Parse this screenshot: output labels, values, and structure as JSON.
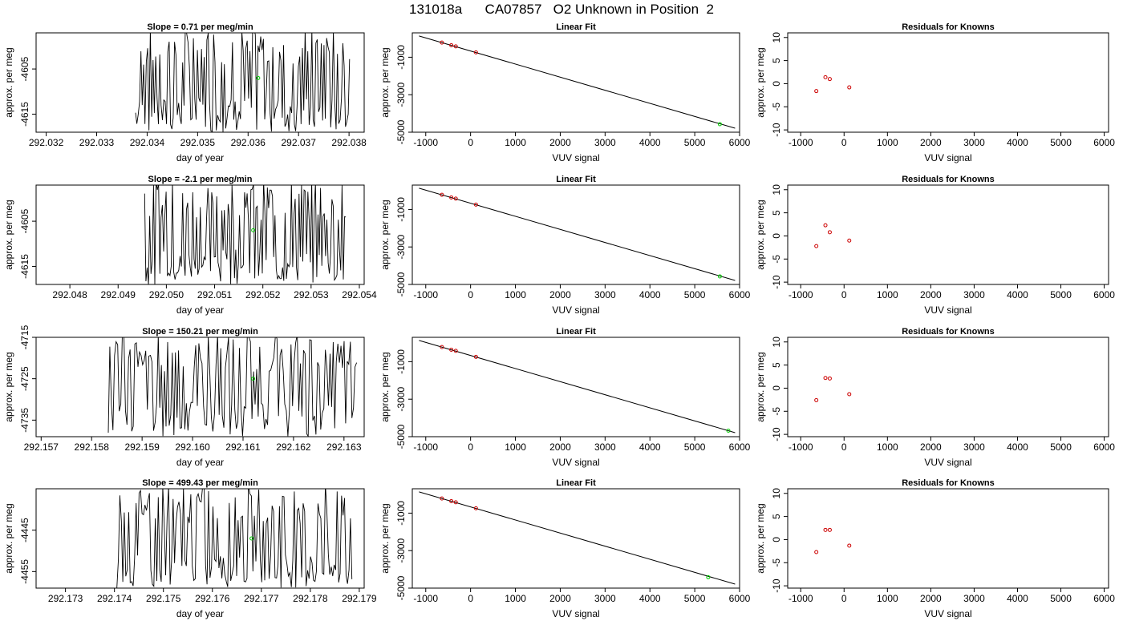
{
  "title": "131018a      CA07857   O2 Unknown in Position  2",
  "colors": {
    "known": "#cc0000",
    "unknown": "#00cc00",
    "line": "#000000"
  },
  "chart_data": [
    {
      "type": "line",
      "panel": "time-series",
      "title": "Slope =  0.71  per meg/min",
      "xlabel": "day of year",
      "ylabel": "approx. per meg",
      "xlim": [
        292.0318,
        292.0383
      ],
      "ylim": [
        -4619,
        -4597
      ],
      "xticks": [
        292.032,
        292.033,
        292.034,
        292.035,
        292.036,
        292.037,
        292.038
      ],
      "xtick_labels": [
        "292.032",
        "292.033",
        "292.034",
        "292.035",
        "292.036",
        "292.037",
        "292.038"
      ],
      "yticks": [
        -4605,
        -4615
      ],
      "ytick_labels": [
        "-4605",
        "-4615"
      ],
      "trace_x": [
        292.03377,
        292.03801
      ],
      "trace_y_range": [
        -4619,
        -4597
      ],
      "point": {
        "x": 292.0362,
        "y": -4607
      }
    },
    {
      "type": "scatter",
      "panel": "linear-fit",
      "title": "Linear Fit",
      "xlabel": "VUV signal",
      "ylabel": "approx. per meg",
      "xlim": [
        -1300,
        6000
      ],
      "ylim": [
        -5000,
        300
      ],
      "xticks": [
        -1000,
        0,
        1000,
        2000,
        3000,
        4000,
        5000,
        6000
      ],
      "xtick_labels": [
        "-1000",
        "0",
        "1000",
        "2000",
        "3000",
        "4000",
        "5000",
        "6000"
      ],
      "yticks": [
        -1000,
        -3000,
        -5000
      ],
      "ytick_labels": [
        "-1000",
        "-3000",
        "-5000"
      ],
      "fit_line": {
        "x": [
          -1150,
          5900
        ],
        "y": [
          136,
          -4787
        ]
      },
      "knowns": [
        {
          "x": -640,
          "y": -220
        },
        {
          "x": -430,
          "y": -360
        },
        {
          "x": -330,
          "y": -420
        },
        {
          "x": 120,
          "y": -740
        }
      ],
      "unknown": {
        "x": 5560,
        "y": -4570
      }
    },
    {
      "type": "scatter",
      "panel": "residuals",
      "title": "Residuals for Knowns",
      "xlabel": "VUV signal",
      "ylabel": "approx. per meg",
      "xlim": [
        -1300,
        6100
      ],
      "ylim": [
        -10.5,
        11
      ],
      "xticks": [
        -1000,
        0,
        1000,
        2000,
        3000,
        4000,
        5000,
        6000
      ],
      "xtick_labels": [
        "-1000",
        "0",
        "1000",
        "2000",
        "3000",
        "4000",
        "5000",
        "6000"
      ],
      "yticks": [
        10,
        5,
        0,
        -5,
        -10
      ],
      "ytick_labels": [
        "10",
        "5",
        "0",
        "-5",
        "-10"
      ],
      "knowns": [
        {
          "x": -640,
          "y": -1.6
        },
        {
          "x": -430,
          "y": 1.4
        },
        {
          "x": -330,
          "y": 1.0
        },
        {
          "x": 120,
          "y": -0.8
        }
      ]
    },
    {
      "type": "line",
      "panel": "time-series",
      "title": "Slope =  -2.1  per meg/min",
      "xlabel": "day of year",
      "ylabel": "approx. per meg",
      "xlim": [
        292.0473,
        292.0541
      ],
      "ylim": [
        -4619,
        -4597
      ],
      "xticks": [
        292.048,
        292.049,
        292.05,
        292.051,
        292.052,
        292.053,
        292.054
      ],
      "xtick_labels": [
        "292.048",
        "292.049",
        "292.050",
        "292.051",
        "292.052",
        "292.053",
        "292.054"
      ],
      "yticks": [
        -4605,
        -4615
      ],
      "ytick_labels": [
        "-4605",
        "-4615"
      ],
      "trace_x": [
        292.04955,
        292.05372
      ],
      "trace_y_range": [
        -4619,
        -4597
      ],
      "point": {
        "x": 292.0518,
        "y": -4607
      }
    },
    {
      "type": "scatter",
      "panel": "linear-fit",
      "title": "Linear Fit",
      "xlabel": "VUV signal",
      "ylabel": "approx. per meg",
      "xlim": [
        -1300,
        6000
      ],
      "ylim": [
        -5000,
        300
      ],
      "xticks": [
        -1000,
        0,
        1000,
        2000,
        3000,
        4000,
        5000,
        6000
      ],
      "xtick_labels": [
        "-1000",
        "0",
        "1000",
        "2000",
        "3000",
        "4000",
        "5000",
        "6000"
      ],
      "yticks": [
        -1000,
        -3000,
        -5000
      ],
      "ytick_labels": [
        "-1000",
        "-3000",
        "-5000"
      ],
      "fit_line": {
        "x": [
          -1150,
          5900
        ],
        "y": [
          136,
          -4787
        ]
      },
      "knowns": [
        {
          "x": -640,
          "y": -220
        },
        {
          "x": -430,
          "y": -360
        },
        {
          "x": -330,
          "y": -420
        },
        {
          "x": 120,
          "y": -740
        }
      ],
      "unknown": {
        "x": 5560,
        "y": -4570
      }
    },
    {
      "type": "scatter",
      "panel": "residuals",
      "title": "Residuals for Knowns",
      "xlabel": "VUV signal",
      "ylabel": "approx. per meg",
      "xlim": [
        -1300,
        6100
      ],
      "ylim": [
        -10.5,
        11
      ],
      "xticks": [
        -1000,
        0,
        1000,
        2000,
        3000,
        4000,
        5000,
        6000
      ],
      "xtick_labels": [
        "-1000",
        "0",
        "1000",
        "2000",
        "3000",
        "4000",
        "5000",
        "6000"
      ],
      "yticks": [
        10,
        5,
        0,
        -5,
        -10
      ],
      "ytick_labels": [
        "10",
        "5",
        "0",
        "-5",
        "-10"
      ],
      "knowns": [
        {
          "x": -640,
          "y": -2.2
        },
        {
          "x": -430,
          "y": 2.3
        },
        {
          "x": -330,
          "y": 0.8
        },
        {
          "x": 120,
          "y": -1.0
        }
      ]
    },
    {
      "type": "line",
      "panel": "time-series",
      "title": "Slope =  150.21  per meg/min",
      "xlabel": "day of year",
      "ylabel": "approx. per meg",
      "xlim": [
        292.1569,
        292.1634
      ],
      "ylim": [
        -4739,
        -4715
      ],
      "xticks": [
        292.157,
        292.158,
        292.159,
        292.16,
        292.161,
        292.162,
        292.163
      ],
      "xtick_labels": [
        "292.157",
        "292.158",
        "292.159",
        "292.160",
        "292.161",
        "292.162",
        "292.163"
      ],
      "yticks": [
        -4715,
        -4725,
        -4735
      ],
      "ytick_labels": [
        "-4715",
        "-4725",
        "-4735"
      ],
      "trace_x": [
        292.15833,
        292.16325
      ],
      "trace_y_range": [
        -4739,
        -4715
      ],
      "point": {
        "x": 292.1612,
        "y": -4725
      }
    },
    {
      "type": "scatter",
      "panel": "linear-fit",
      "title": "Linear Fit",
      "xlabel": "VUV signal",
      "ylabel": "approx. per meg",
      "xlim": [
        -1300,
        6000
      ],
      "ylim": [
        -5000,
        300
      ],
      "xticks": [
        -1000,
        0,
        1000,
        2000,
        3000,
        4000,
        5000,
        6000
      ],
      "xtick_labels": [
        "-1000",
        "0",
        "1000",
        "2000",
        "3000",
        "4000",
        "5000",
        "6000"
      ],
      "yticks": [
        -1000,
        -3000,
        -5000
      ],
      "ytick_labels": [
        "-1000",
        "-3000",
        "-5000"
      ],
      "fit_line": {
        "x": [
          -1150,
          5900
        ],
        "y": [
          136,
          -4787
        ]
      },
      "knowns": [
        {
          "x": -640,
          "y": -220
        },
        {
          "x": -430,
          "y": -360
        },
        {
          "x": -330,
          "y": -420
        },
        {
          "x": 120,
          "y": -740
        }
      ],
      "unknown": {
        "x": 5750,
        "y": -4680
      }
    },
    {
      "type": "scatter",
      "panel": "residuals",
      "title": "Residuals for Knowns",
      "xlabel": "VUV signal",
      "ylabel": "approx. per meg",
      "xlim": [
        -1300,
        6100
      ],
      "ylim": [
        -10.5,
        11
      ],
      "xticks": [
        -1000,
        0,
        1000,
        2000,
        3000,
        4000,
        5000,
        6000
      ],
      "xtick_labels": [
        "-1000",
        "0",
        "1000",
        "2000",
        "3000",
        "4000",
        "5000",
        "6000"
      ],
      "yticks": [
        10,
        5,
        0,
        -5,
        -10
      ],
      "ytick_labels": [
        "10",
        "5",
        "0",
        "-5",
        "-10"
      ],
      "knowns": [
        {
          "x": -640,
          "y": -2.6
        },
        {
          "x": -430,
          "y": 2.2
        },
        {
          "x": -330,
          "y": 2.1
        },
        {
          "x": 120,
          "y": -1.3
        }
      ]
    },
    {
      "type": "line",
      "panel": "time-series",
      "title": "Slope =  499.43  per meg/min",
      "xlabel": "day of year",
      "ylabel": "approx. per meg",
      "xlim": [
        292.1724,
        292.1791
      ],
      "ylim": [
        -4459,
        -4435
      ],
      "xticks": [
        292.173,
        292.174,
        292.175,
        292.176,
        292.177,
        292.178,
        292.179
      ],
      "xtick_labels": [
        "292.173",
        "292.174",
        "292.175",
        "292.176",
        "292.177",
        "292.178",
        "292.179"
      ],
      "yticks": [
        -4445,
        -4455
      ],
      "ytick_labels": [
        "-4445",
        "-4455"
      ],
      "trace_x": [
        292.17405,
        292.17885
      ],
      "trace_y_range": [
        -4459,
        -4435
      ],
      "point": {
        "x": 292.1768,
        "y": -4447
      }
    },
    {
      "type": "scatter",
      "panel": "linear-fit",
      "title": "Linear Fit",
      "xlabel": "VUV signal",
      "ylabel": "approx. per meg",
      "xlim": [
        -1300,
        6000
      ],
      "ylim": [
        -5000,
        300
      ],
      "xticks": [
        -1000,
        0,
        1000,
        2000,
        3000,
        4000,
        5000,
        6000
      ],
      "xtick_labels": [
        "-1000",
        "0",
        "1000",
        "2000",
        "3000",
        "4000",
        "5000",
        "6000"
      ],
      "yticks": [
        -1000,
        -3000,
        -5000
      ],
      "ytick_labels": [
        "-1000",
        "-3000",
        "-5000"
      ],
      "fit_line": {
        "x": [
          -1150,
          5900
        ],
        "y": [
          136,
          -4787
        ]
      },
      "knowns": [
        {
          "x": -640,
          "y": -220
        },
        {
          "x": -430,
          "y": -360
        },
        {
          "x": -330,
          "y": -420
        },
        {
          "x": 120,
          "y": -740
        }
      ],
      "unknown": {
        "x": 5300,
        "y": -4420
      }
    },
    {
      "type": "scatter",
      "panel": "residuals",
      "title": "Residuals for Knowns",
      "xlabel": "VUV signal",
      "ylabel": "approx. per meg",
      "xlim": [
        -1300,
        6100
      ],
      "ylim": [
        -10.5,
        11
      ],
      "xticks": [
        -1000,
        0,
        1000,
        2000,
        3000,
        4000,
        5000,
        6000
      ],
      "xtick_labels": [
        "-1000",
        "0",
        "1000",
        "2000",
        "3000",
        "4000",
        "5000",
        "6000"
      ],
      "yticks": [
        10,
        5,
        0,
        -5,
        -10
      ],
      "ytick_labels": [
        "10",
        "5",
        "0",
        "-5",
        "-10"
      ],
      "knowns": [
        {
          "x": -640,
          "y": -2.7
        },
        {
          "x": -430,
          "y": 2.1
        },
        {
          "x": -330,
          "y": 2.1
        },
        {
          "x": 120,
          "y": -1.3
        }
      ]
    }
  ]
}
